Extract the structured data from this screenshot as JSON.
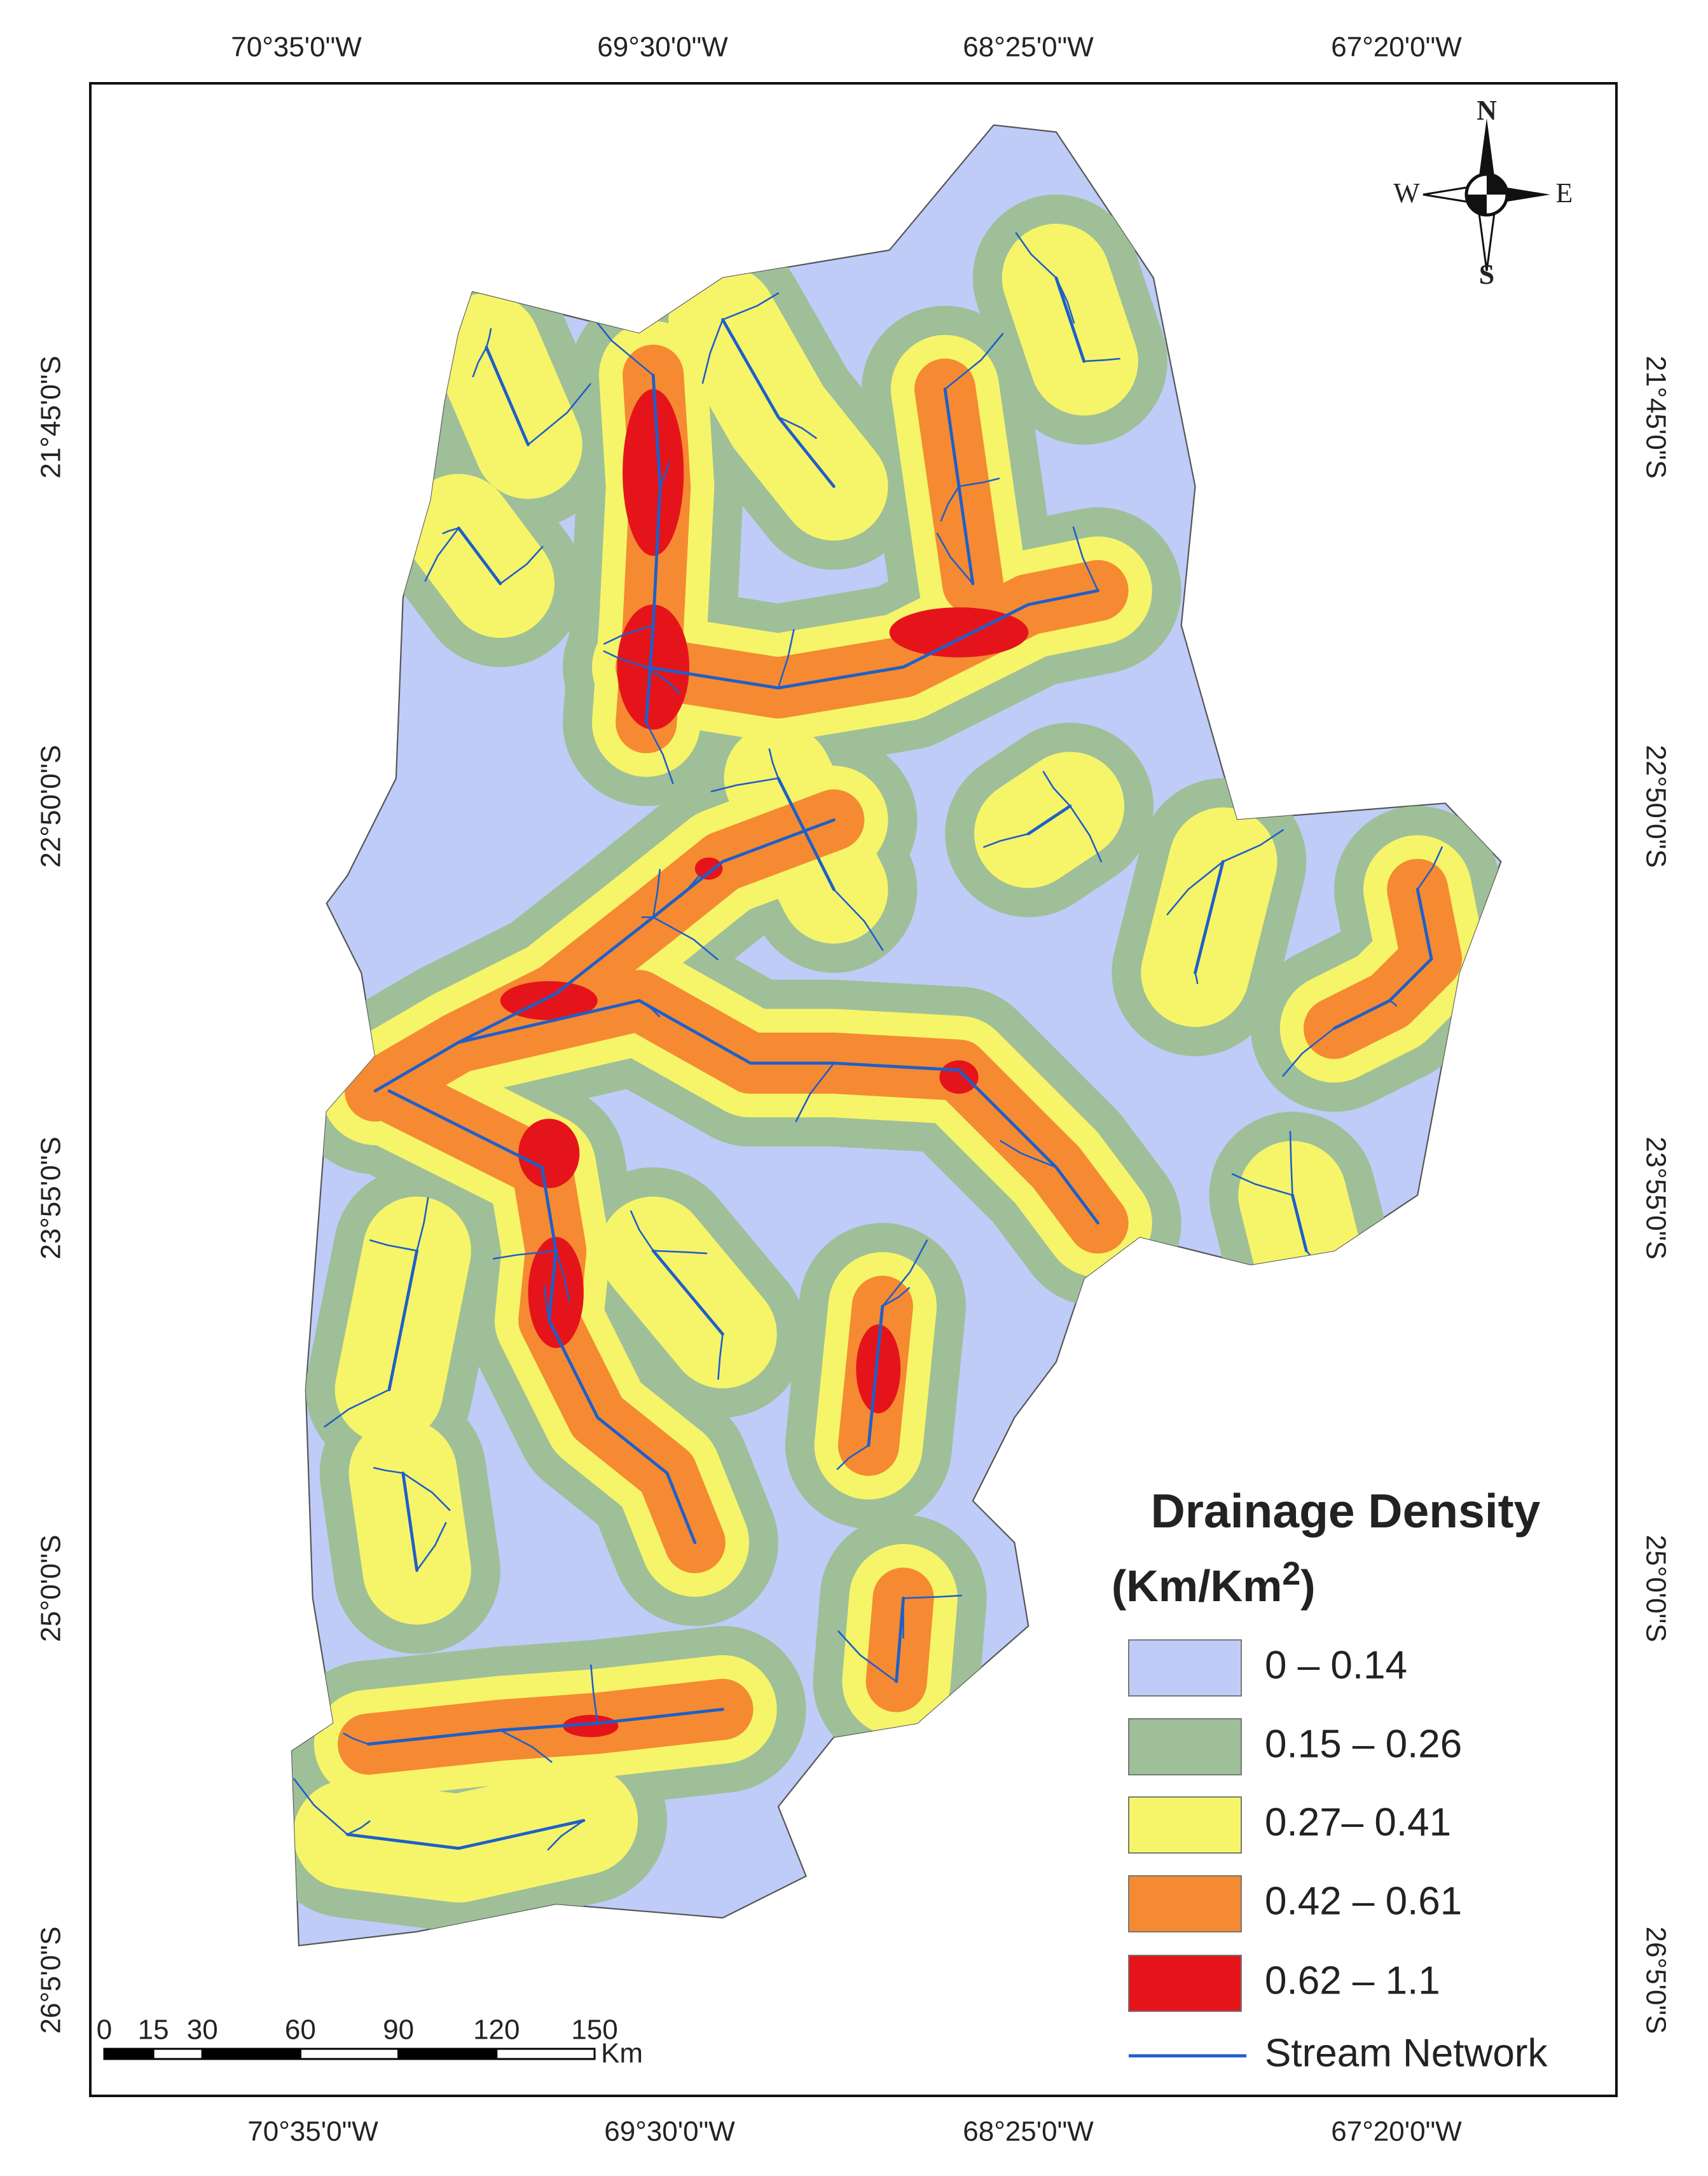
{
  "map": {
    "top_longitude_labels": [
      "70°35'0\"W",
      "69°30'0\"W",
      "68°25'0\"W",
      "67°20'0\"W"
    ],
    "bottom_longitude_labels": [
      "70°35'0\"W",
      "69°30'0\"W",
      "68°25'0\"W",
      "67°20'0\"W"
    ],
    "left_latitude_labels": [
      "21°45'0\"S",
      "22°50'0\"S",
      "23°55'0\"S",
      "25°0'0\"S",
      "26°5'0\"S"
    ],
    "right_latitude_labels": [
      "21°45'0\"S",
      "22°50'0\"S",
      "23°55'0\"S",
      "25°0'0\"S",
      "26°5'0\"S"
    ],
    "compass": {
      "n": "N",
      "s": "S",
      "e": "E",
      "w": "W"
    },
    "scale_bar": {
      "ticks": [
        0,
        15,
        30,
        60,
        90,
        120,
        150
      ],
      "unit": "Km"
    },
    "legend": {
      "title": "Drainage Density",
      "unit_prefix": "(Km/Km",
      "unit_exponent": "2",
      "unit_suffix": ")",
      "classes": [
        {
          "label": "0 – 0.14",
          "color": "#bfccf8"
        },
        {
          "label": "0.15 – 0.26",
          "color": "#9fbf98"
        },
        {
          "label": "0.27– 0.41",
          "color": "#f6f56a"
        },
        {
          "label": "0.42 – 0.61",
          "color": "#f58a32"
        },
        {
          "label": "0.62 – 1.1",
          "color": "#e5141b"
        }
      ],
      "stream": {
        "label": "Stream Network",
        "color": "#1f5fc8"
      }
    }
  }
}
